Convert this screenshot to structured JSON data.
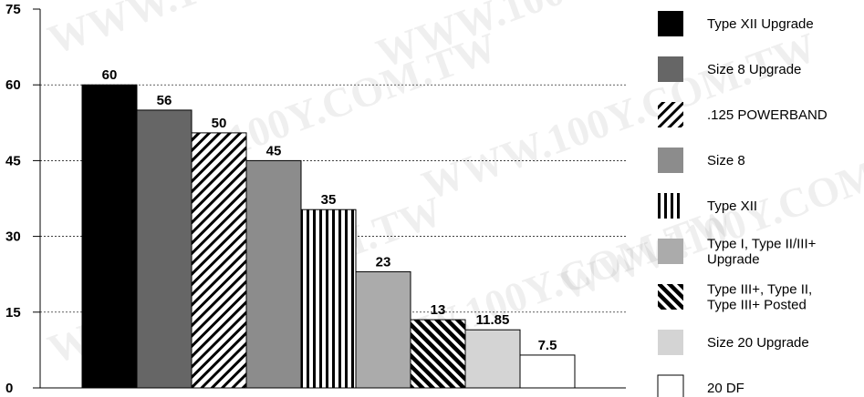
{
  "chart_data": {
    "type": "bar",
    "title": "",
    "xlabel": "",
    "ylabel": "",
    "ylim": [
      0,
      75
    ],
    "yticks": [
      0,
      15,
      30,
      45,
      60,
      75
    ],
    "grid": true,
    "legend_position": "right",
    "categories": [
      "Type XII Upgrade",
      "Size 8 Upgrade",
      ".125 POWERBAND",
      "Size 8",
      "Type XII",
      "Type I, Type II/III+ Upgrade",
      "Type III+, Type II, Type III+ Posted",
      "Size 20 Upgrade",
      "20 DF"
    ],
    "values": [
      60,
      56,
      50,
      45,
      35,
      23,
      13,
      11.85,
      7.5
    ],
    "data_labels": [
      "60",
      "56",
      "50",
      "45",
      "35",
      "23",
      "13",
      "11.85",
      "7.5"
    ],
    "bar_heights": [
      60,
      55,
      50.5,
      45,
      35.3,
      23,
      13.5,
      11.5,
      6.5
    ],
    "legend": [
      {
        "lines": [
          "Type XII Upgrade"
        ],
        "fill": "solid",
        "color": "#000000"
      },
      {
        "lines": [
          "Size 8 Upgrade"
        ],
        "fill": "solid",
        "color": "#666666"
      },
      {
        "lines": [
          ".125 POWERBAND"
        ],
        "fill": "diag-light",
        "color": "#000000"
      },
      {
        "lines": [
          "Size 8"
        ],
        "fill": "solid",
        "color": "#8c8c8c"
      },
      {
        "lines": [
          "Type XII"
        ],
        "fill": "vertical",
        "color": "#000000"
      },
      {
        "lines": [
          "Type I, Type II/III+",
          "Upgrade"
        ],
        "fill": "solid",
        "color": "#ababab"
      },
      {
        "lines": [
          "Type III+, Type II,",
          "Type III+ Posted"
        ],
        "fill": "diag-heavy",
        "color": "#000000"
      },
      {
        "lines": [
          "Size 20 Upgrade"
        ],
        "fill": "solid",
        "color": "#d4d4d4"
      },
      {
        "lines": [
          "20 DF"
        ],
        "fill": "solid",
        "color": "#ffffff"
      }
    ]
  }
}
